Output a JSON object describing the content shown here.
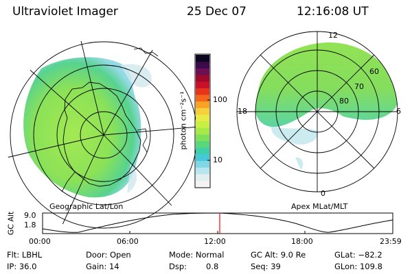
{
  "header": {
    "title": "Ultraviolet Imager",
    "date": "25 Dec 07",
    "time": "12:16:08 UT"
  },
  "maps": {
    "left_caption": "Geographic Lat/Lon",
    "right_caption": "Apex MLat/MLT",
    "right_labels": {
      "mlt_top": "12",
      "mlt_right": "6",
      "mlt_bottom": "0",
      "mlt_left": "18",
      "lat_60": "60",
      "lat_70": "70",
      "lat_80": "80"
    }
  },
  "colorbar": {
    "label": "photon cm⁻²s⁻¹",
    "tick_100": "100",
    "tick_10": "10",
    "colors": [
      "#0b0720",
      "#3a0a4a",
      "#6d0f52",
      "#9c0a2c",
      "#c8102a",
      "#e8331c",
      "#f5661b",
      "#f9a326",
      "#f6cf3a",
      "#e8ea47",
      "#c9ef43",
      "#a8e94a",
      "#7ee05a",
      "#57d87a",
      "#3fd0a9",
      "#45c8d8",
      "#7fd6e6",
      "#b7e6ef",
      "#e2eef1",
      "#f3f3f3"
    ]
  },
  "timeline": {
    "axis_label": "GC Alt",
    "tick_high": "9.0",
    "tick_low": "1.8",
    "times": [
      "00:00",
      "06:00",
      "12:00",
      "18:00",
      "23:59"
    ]
  },
  "info": {
    "flt": "Flt: LBHL",
    "ip": "IP: 36.0",
    "door": "Door: Open",
    "gain": "Gain: 14",
    "mode": "Mode: Normal",
    "dsp_label": "Dsp:",
    "dsp_value": "0.8",
    "gc_alt": "GC Alt: 9.0 Re",
    "seq": "Seq: 39",
    "glat": "GLat: −82.2",
    "glon": "GLon: 109.8"
  }
}
